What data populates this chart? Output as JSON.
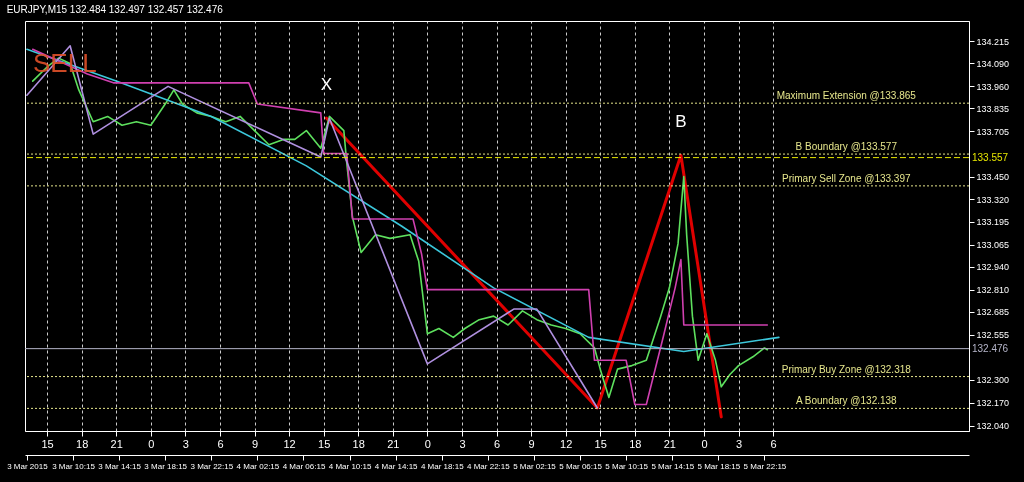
{
  "chart_data": {
    "type": "line",
    "title": "EURJPY,M15  132.484 132.497 132.457 132.476",
    "xlim": [
      "2015-03-03T06:05",
      "2015-03-06T16:00"
    ],
    "xticks": [
      {
        "value": "2015-03-03T06:15",
        "label": "3 Mar 2015"
      },
      {
        "value": "2015-03-03T10:15",
        "label": "3 Mar 10:15"
      },
      {
        "value": "2015-03-03T14:15",
        "label": "3 Mar 14:15"
      },
      {
        "value": "2015-03-03T18:15",
        "label": "3 Mar 18:15"
      },
      {
        "value": "2015-03-03T22:15",
        "label": "3 Mar 22:15"
      },
      {
        "value": "2015-03-04T02:15",
        "label": "4 Mar 02:15"
      },
      {
        "value": "2015-03-04T06:15",
        "label": "4 Mar 06:15"
      },
      {
        "value": "2015-03-04T10:15",
        "label": "4 Mar 10:15"
      },
      {
        "value": "2015-03-04T14:15",
        "label": "4 Mar 14:15"
      },
      {
        "value": "2015-03-04T18:15",
        "label": "4 Mar 18:15"
      },
      {
        "value": "2015-03-04T22:15",
        "label": "4 Mar 22:15"
      },
      {
        "value": "2015-03-05T02:15",
        "label": "5 Mar 02:15"
      },
      {
        "value": "2015-03-05T06:15",
        "label": "5 Mar 06:15"
      },
      {
        "value": "2015-03-05T10:15",
        "label": "5 Mar 10:15"
      },
      {
        "value": "2015-03-05T14:15",
        "label": "5 Mar 14:15"
      },
      {
        "value": "2015-03-05T18:15",
        "label": "5 Mar 18:15"
      },
      {
        "value": "2015-03-05T22:15",
        "label": "5 Mar 22:15"
      }
    ],
    "x2lim": [
      "2015-03-03T13:05",
      "2015-03-06T23:00"
    ],
    "x2ticks": [
      {
        "value": "2015-03-03T15:00",
        "label": "15"
      },
      {
        "value": "2015-03-03T18:00",
        "label": "18"
      },
      {
        "value": "2015-03-03T21:00",
        "label": "21"
      },
      {
        "value": "2015-03-04T00:00",
        "label": "0"
      },
      {
        "value": "2015-03-04T03:00",
        "label": "3"
      },
      {
        "value": "2015-03-04T06:00",
        "label": "6"
      },
      {
        "value": "2015-03-04T09:00",
        "label": "9"
      },
      {
        "value": "2015-03-04T12:00",
        "label": "12"
      },
      {
        "value": "2015-03-04T15:00",
        "label": "15"
      },
      {
        "value": "2015-03-04T18:00",
        "label": "18"
      },
      {
        "value": "2015-03-04T21:00",
        "label": "21"
      },
      {
        "value": "2015-03-05T00:00",
        "label": "0"
      },
      {
        "value": "2015-03-05T03:00",
        "label": "3"
      },
      {
        "value": "2015-03-05T06:00",
        "label": "6"
      },
      {
        "value": "2015-03-05T09:00",
        "label": "9"
      },
      {
        "value": "2015-03-05T12:00",
        "label": "12"
      },
      {
        "value": "2015-03-05T15:00",
        "label": "15"
      },
      {
        "value": "2015-03-05T18:00",
        "label": "18"
      },
      {
        "value": "2015-03-05T21:00",
        "label": "21"
      },
      {
        "value": "2015-03-06T00:00",
        "label": "0"
      },
      {
        "value": "2015-03-06T03:00",
        "label": "3"
      },
      {
        "value": "2015-03-06T06:00",
        "label": "6"
      }
    ],
    "ylim": [
      132.01,
      134.33
    ],
    "yticks": [
      {
        "value": 134.215,
        "label": "134.215"
      },
      {
        "value": 134.09,
        "label": "134.090"
      },
      {
        "value": 133.96,
        "label": "133.960"
      },
      {
        "value": 133.835,
        "label": "133.835"
      },
      {
        "value": 133.705,
        "label": "133.705"
      },
      {
        "value": 133.45,
        "label": "133.450"
      },
      {
        "value": 133.32,
        "label": "133.320"
      },
      {
        "value": 133.195,
        "label": "133.195"
      },
      {
        "value": 133.065,
        "label": "133.065"
      },
      {
        "value": 132.94,
        "label": "132.940"
      },
      {
        "value": 132.81,
        "label": "132.810"
      },
      {
        "value": 132.685,
        "label": "132.685"
      },
      {
        "value": 132.555,
        "label": "132.555"
      },
      {
        "value": 132.3,
        "label": "132.300"
      },
      {
        "value": 132.17,
        "label": "132.170"
      },
      {
        "value": 132.04,
        "label": "132.040"
      }
    ],
    "grid": "x",
    "series": [
      {
        "color": "#5ee05e",
        "x": [
          "2015-03-03T06:45",
          "2015-03-03T08:00",
          "2015-03-03T09:00",
          "2015-03-03T10:00",
          "2015-03-03T10:45",
          "2015-03-03T12:00",
          "2015-03-03T13:15",
          "2015-03-03T14:30",
          "2015-03-03T15:45",
          "2015-03-03T17:00",
          "2015-03-03T18:15",
          "2015-03-03T19:00",
          "2015-03-03T19:45",
          "2015-03-03T21:00",
          "2015-03-03T22:15",
          "2015-03-03T23:30",
          "2015-03-04T00:45",
          "2015-03-04T02:00",
          "2015-03-04T03:15",
          "2015-03-04T04:30",
          "2015-03-04T05:30",
          "2015-03-04T06:30",
          "2015-03-04T07:45",
          "2015-03-04T08:30",
          "2015-03-04T09:45",
          "2015-03-04T10:00",
          "2015-03-04T10:30",
          "2015-03-04T11:15",
          "2015-03-04T12:30",
          "2015-03-04T13:45",
          "2015-03-04T15:30",
          "2015-03-04T16:15",
          "2015-03-04T17:00",
          "2015-03-04T18:00",
          "2015-03-04T19:15",
          "2015-03-04T20:15",
          "2015-03-04T21:30",
          "2015-03-04T22:45",
          "2015-03-05T00:00",
          "2015-03-05T01:15",
          "2015-03-05T02:30",
          "2015-03-05T03:45",
          "2015-03-05T05:00",
          "2015-03-05T06:15",
          "2015-03-05T07:30",
          "2015-03-05T08:00",
          "2015-03-05T08:45",
          "2015-03-05T09:30",
          "2015-03-05T10:45",
          "2015-03-05T12:00",
          "2015-03-05T13:15",
          "2015-03-05T14:00",
          "2015-03-05T14:45",
          "2015-03-05T15:15",
          "2015-03-05T15:30",
          "2015-03-05T16:00",
          "2015-03-05T16:30",
          "2015-03-05T17:15",
          "2015-03-05T18:00",
          "2015-03-05T18:30",
          "2015-03-05T19:15",
          "2015-03-05T20:00",
          "2015-03-05T21:15",
          "2015-03-05T22:15",
          "2015-03-05T22:30"
        ],
        "values": [
          133.99,
          134.07,
          134.12,
          134.09,
          133.94,
          133.76,
          133.79,
          133.74,
          133.76,
          133.74,
          133.86,
          133.94,
          133.86,
          133.81,
          133.79,
          133.76,
          133.79,
          133.71,
          133.63,
          133.66,
          133.66,
          133.71,
          133.61,
          133.79,
          133.71,
          133.53,
          133.22,
          133.02,
          133.12,
          133.1,
          133.12,
          132.97,
          132.56,
          132.59,
          132.54,
          132.59,
          132.64,
          132.66,
          132.61,
          132.69,
          132.64,
          132.61,
          132.59,
          132.56,
          132.48,
          132.36,
          132.2,
          132.36,
          132.38,
          132.41,
          132.66,
          132.82,
          133.07,
          133.45,
          133.12,
          132.66,
          132.41,
          132.56,
          132.41,
          132.26,
          132.33,
          132.38,
          132.43,
          132.48,
          132.47
        ]
      },
      {
        "color": "#3cc8dc",
        "x": [
          "2015-03-03T06:15",
          "2015-03-03T14:00",
          "2015-03-03T22:15",
          "2015-03-04T06:30",
          "2015-03-04T14:45",
          "2015-03-04T22:45",
          "2015-03-05T07:00",
          "2015-03-05T15:15",
          "2015-03-05T23:30"
        ],
        "values": [
          134.17,
          133.99,
          133.79,
          133.51,
          133.17,
          132.82,
          132.54,
          132.46,
          132.54
        ]
      },
      {
        "color": "#d040b0",
        "x": [
          "2015-03-03T06:45",
          "2015-03-03T11:30",
          "2015-03-03T13:45",
          "2015-03-04T01:30",
          "2015-03-04T02:15",
          "2015-03-04T07:45",
          "2015-03-04T08:00",
          "2015-03-04T10:00",
          "2015-03-04T10:30",
          "2015-03-04T15:45",
          "2015-03-04T16:30",
          "2015-03-04T17:00",
          "2015-03-05T07:00",
          "2015-03-05T07:30",
          "2015-03-05T10:15",
          "2015-03-05T11:00",
          "2015-03-05T12:00",
          "2015-03-05T13:30",
          "2015-03-05T14:30",
          "2015-03-05T15:00",
          "2015-03-05T15:15",
          "2015-03-05T22:30"
        ],
        "values": [
          134.17,
          134.03,
          133.98,
          133.98,
          133.86,
          133.81,
          133.58,
          133.58,
          133.21,
          133.21,
          133.01,
          132.81,
          132.81,
          132.41,
          132.41,
          132.16,
          132.16,
          132.55,
          132.82,
          132.98,
          132.61,
          132.61
        ]
      },
      {
        "color": "#b090e0",
        "x": [
          "2015-03-03T06:15",
          "2015-03-03T10:00",
          "2015-03-03T12:00",
          "2015-03-03T18:30",
          "2015-03-04T07:45",
          "2015-03-04T08:30",
          "2015-03-04T17:00",
          "2015-03-05T00:30",
          "2015-03-05T02:30",
          "2015-03-05T07:45"
        ],
        "values": [
          133.91,
          134.19,
          133.69,
          133.96,
          133.56,
          133.78,
          132.39,
          132.7,
          132.7,
          132.14
        ]
      },
      {
        "color": "#e00000",
        "x": [
          "2015-03-04T08:15",
          "2015-03-05T07:45",
          "2015-03-05T15:00",
          "2015-03-05T18:30"
        ],
        "values": [
          133.78,
          132.14,
          133.57,
          132.09
        ]
      }
    ],
    "ref_lines": [
      {
        "axis": "y",
        "value": 133.865,
        "label": "Maximum Extension @133.865",
        "color": "#e6e68c",
        "line_style": "dotted"
      },
      {
        "axis": "y",
        "value": 133.577,
        "label": "B Boundary @133.577",
        "color": "#e6e68c",
        "line_style": "dotted"
      },
      {
        "axis": "y",
        "value": 133.397,
        "label": "Primary Sell Zone @133.397",
        "color": "#e6e68c",
        "line_style": "dotted"
      },
      {
        "axis": "y",
        "value": 132.318,
        "label": "Primary Buy Zone @132.318",
        "color": "#e6e68c",
        "line_style": "dotted"
      },
      {
        "axis": "y",
        "value": 132.138,
        "label": "A Boundary @132.138",
        "color": "#e6e68c",
        "line_style": "dotted"
      },
      {
        "axis": "y",
        "value": 133.557,
        "label": "133.557",
        "color": "#e6e600",
        "line_style": "dashed"
      },
      {
        "axis": "y",
        "value": 132.476,
        "label": "132.476",
        "color": "#b4b4c8",
        "line_style": "solid"
      }
    ],
    "annotations": [
      {
        "text": "X",
        "x": "2015-03-04T08:15",
        "y": 133.78
      },
      {
        "text": "B",
        "x": "2015-03-05T15:00",
        "y": 133.57
      },
      "SELL"
    ]
  }
}
